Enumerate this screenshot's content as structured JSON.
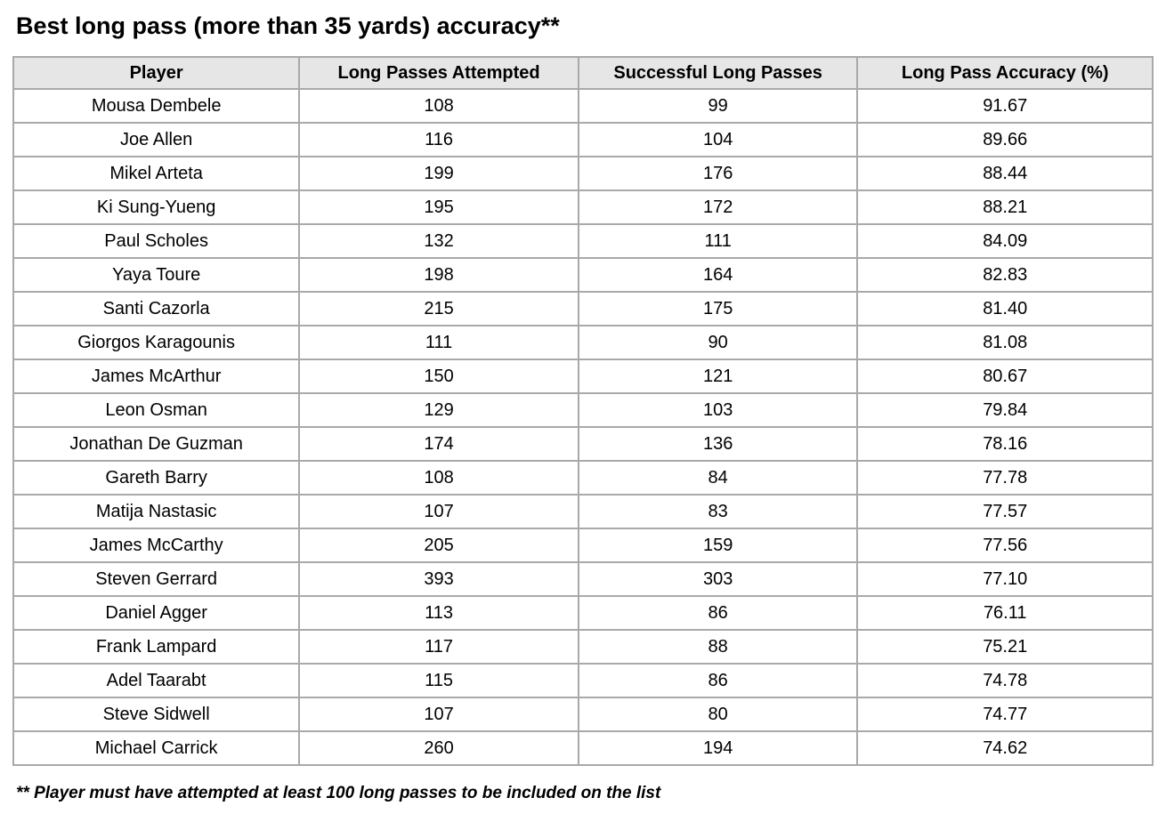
{
  "title": "Best long pass (more than 35 yards) accuracy**",
  "footnote": "** Player must have attempted at least 100 long passes to be included on the list",
  "colors": {
    "header_bg": "#e6e6e6",
    "border": "#a9a9a9",
    "text": "#000000",
    "page_bg": "#ffffff"
  },
  "chart_data": {
    "type": "table",
    "title": "Best long pass (more than 35 yards) accuracy**",
    "columns": [
      "Player",
      "Long Passes Attempted",
      "Successful Long Passes",
      "Long Pass Accuracy (%)"
    ],
    "rows": [
      [
        "Mousa Dembele",
        "108",
        "99",
        "91.67"
      ],
      [
        "Joe Allen",
        "116",
        "104",
        "89.66"
      ],
      [
        "Mikel Arteta",
        "199",
        "176",
        "88.44"
      ],
      [
        "Ki Sung-Yueng",
        "195",
        "172",
        "88.21"
      ],
      [
        "Paul Scholes",
        "132",
        "111",
        "84.09"
      ],
      [
        "Yaya Toure",
        "198",
        "164",
        "82.83"
      ],
      [
        "Santi Cazorla",
        "215",
        "175",
        "81.40"
      ],
      [
        "Giorgos Karagounis",
        "111",
        "90",
        "81.08"
      ],
      [
        "James McArthur",
        "150",
        "121",
        "80.67"
      ],
      [
        "Leon Osman",
        "129",
        "103",
        "79.84"
      ],
      [
        "Jonathan De Guzman",
        "174",
        "136",
        "78.16"
      ],
      [
        "Gareth Barry",
        "108",
        "84",
        "77.78"
      ],
      [
        "Matija Nastasic",
        "107",
        "83",
        "77.57"
      ],
      [
        "James McCarthy",
        "205",
        "159",
        "77.56"
      ],
      [
        "Steven Gerrard",
        "393",
        "303",
        "77.10"
      ],
      [
        "Daniel Agger",
        "113",
        "86",
        "76.11"
      ],
      [
        "Frank Lampard",
        "117",
        "88",
        "75.21"
      ],
      [
        "Adel Taarabt",
        "115",
        "86",
        "74.78"
      ],
      [
        "Steve Sidwell",
        "107",
        "80",
        "74.77"
      ],
      [
        "Michael Carrick",
        "260",
        "194",
        "74.62"
      ]
    ]
  }
}
